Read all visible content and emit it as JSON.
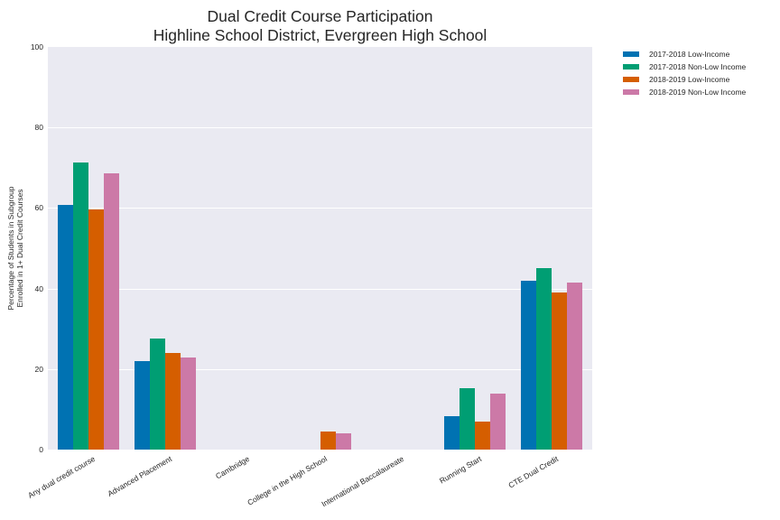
{
  "chart_data": {
    "type": "bar",
    "title": "Dual Credit Course Participation",
    "subtitle": "Highline School District, Evergreen High School",
    "xlabel": "",
    "ylabel": "Percentage of Students in Subgroup\nEnrolled in 1+ Dual Credit Courses",
    "ylabel_lines": [
      "Percentage of Students in Subgroup",
      "Enrolled in 1+ Dual Credit Courses"
    ],
    "ylim": [
      0,
      100
    ],
    "yticks": [
      0,
      20,
      40,
      60,
      80,
      100
    ],
    "grid": true,
    "legend_position": "outside right top",
    "categories": [
      "Any dual credit course",
      "Advanced Placement",
      "Cambridge",
      "College in the High School",
      "International Baccalaureate",
      "Running Start",
      "CTE Dual Credit"
    ],
    "series": [
      {
        "name": "2017-2018 Low-Income",
        "color": "#0072b2",
        "values": [
          60.8,
          22.0,
          0,
          0,
          0,
          8.3,
          41.9
        ]
      },
      {
        "name": "2017-2018 Non-Low Income",
        "color": "#009e73",
        "values": [
          71.3,
          27.6,
          0,
          0,
          0,
          15.2,
          45.1
        ]
      },
      {
        "name": "2018-2019 Low-Income",
        "color": "#d55e00",
        "values": [
          59.6,
          24.0,
          0,
          4.5,
          0,
          7.0,
          39.0
        ]
      },
      {
        "name": "2018-2019 Non-Low Income",
        "color": "#cc79a7",
        "values": [
          68.6,
          22.9,
          0,
          4.0,
          0,
          13.9,
          41.5
        ]
      }
    ]
  }
}
